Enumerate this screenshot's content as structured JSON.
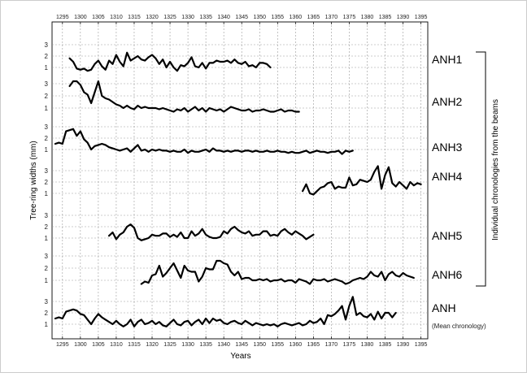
{
  "chart_data": {
    "type": "line",
    "xlabel": "Years",
    "ylabel": "Tree-ring widths (mm)",
    "right_label": "Individual chronologies from the beams",
    "xlim": [
      1293,
      1396
    ],
    "xticks": [
      1295,
      1300,
      1305,
      1310,
      1315,
      1320,
      1325,
      1330,
      1335,
      1340,
      1345,
      1350,
      1355,
      1360,
      1365,
      1370,
      1375,
      1380,
      1385,
      1390,
      1395
    ],
    "y_ticks": [
      1,
      2,
      3
    ],
    "grid": true,
    "series": [
      {
        "name": "ANH1",
        "sub": "",
        "start": 1297,
        "values": [
          1.8,
          1.5,
          0.9,
          0.8,
          0.9,
          0.7,
          0.8,
          1.3,
          1.6,
          1.1,
          0.8,
          1.6,
          1.3,
          2.1,
          1.5,
          1.1,
          2.3,
          1.6,
          1.8,
          2.0,
          1.7,
          1.6,
          1.9,
          2.1,
          1.8,
          1.3,
          1.7,
          1.0,
          1.5,
          1.0,
          0.7,
          1.2,
          1.1,
          1.4,
          1.9,
          1.1,
          1.0,
          1.4,
          0.9,
          1.4,
          1.4,
          1.6,
          1.5,
          1.5,
          1.6,
          1.4,
          1.7,
          1.4,
          1.3,
          1.5,
          1.1,
          1.2,
          1.0,
          1.4,
          1.4,
          1.3,
          1.0
        ]
      },
      {
        "name": "ANH2",
        "sub": "",
        "start": 1297,
        "values": [
          2.8,
          3.2,
          3.2,
          2.9,
          2.3,
          2.1,
          1.4,
          2.3,
          3.2,
          2.0,
          1.8,
          1.7,
          1.5,
          1.3,
          1.2,
          1.0,
          1.2,
          1.0,
          0.9,
          1.2,
          1.0,
          1.1,
          1.0,
          1.0,
          1.0,
          0.9,
          1.0,
          0.9,
          0.8,
          0.7,
          0.9,
          0.8,
          1.0,
          0.7,
          0.9,
          1.1,
          0.8,
          1.0,
          0.7,
          1.0,
          0.9,
          0.8,
          0.9,
          0.7,
          0.9,
          1.1,
          1.0,
          0.9,
          0.8,
          0.8,
          0.9,
          0.7,
          0.8,
          0.8,
          0.9,
          0.8,
          0.7,
          0.7,
          0.8,
          0.9,
          0.7,
          0.8,
          0.8,
          0.7,
          0.7
        ]
      },
      {
        "name": "ANH3",
        "sub": "",
        "start": 1293,
        "values": [
          1.5,
          1.6,
          1.5,
          2.6,
          2.7,
          2.8,
          2.2,
          2.6,
          1.9,
          1.6,
          1.0,
          1.3,
          1.4,
          1.5,
          1.4,
          1.2,
          1.1,
          1.0,
          0.9,
          1.0,
          1.1,
          0.8,
          1.1,
          1.4,
          0.9,
          1.0,
          0.8,
          1.0,
          0.9,
          1.0,
          0.9,
          0.9,
          0.8,
          0.9,
          0.8,
          0.8,
          1.0,
          0.7,
          0.9,
          0.8,
          0.8,
          0.9,
          1.0,
          0.8,
          1.1,
          0.9,
          0.9,
          0.8,
          0.9,
          0.8,
          0.9,
          0.9,
          0.8,
          0.9,
          0.9,
          0.8,
          0.9,
          0.8,
          0.8,
          0.9,
          0.8,
          0.8,
          0.9,
          0.8,
          0.8,
          0.7,
          0.8,
          0.7,
          0.7,
          0.8,
          0.9,
          0.7,
          0.8,
          0.9,
          0.8,
          0.8,
          0.7,
          0.8,
          0.8,
          0.9,
          0.6,
          0.9,
          0.8,
          0.9
        ]
      },
      {
        "name": "ANH4",
        "sub": "",
        "start": 1362,
        "values": [
          1.2,
          1.8,
          1.0,
          0.9,
          1.2,
          1.5,
          1.6,
          1.9,
          2.0,
          1.4,
          1.6,
          1.5,
          1.5,
          2.4,
          1.7,
          1.8,
          2.2,
          2.1,
          2.0,
          2.2,
          2.9,
          3.4,
          1.4,
          2.6,
          3.3,
          1.9,
          1.6,
          2.0,
          1.7,
          1.4,
          2.0,
          1.7,
          1.9,
          1.8
        ]
      },
      {
        "name": "ANH5",
        "sub": "",
        "start": 1308,
        "values": [
          1.2,
          1.5,
          0.9,
          1.3,
          1.5,
          2.0,
          2.2,
          1.9,
          1.0,
          0.8,
          0.9,
          1.0,
          1.3,
          1.2,
          1.2,
          1.4,
          1.4,
          1.1,
          1.3,
          1.1,
          1.5,
          1.0,
          1.0,
          1.6,
          1.2,
          1.4,
          1.8,
          1.3,
          1.1,
          1.0,
          1.0,
          1.1,
          1.6,
          1.4,
          1.8,
          2.0,
          1.7,
          1.5,
          1.4,
          1.6,
          1.2,
          1.3,
          1.3,
          1.6,
          1.6,
          1.2,
          1.3,
          1.2,
          1.6,
          1.8,
          1.5,
          1.3,
          1.6,
          1.4,
          1.2,
          0.9,
          1.1,
          1.3
        ]
      },
      {
        "name": "ANH6",
        "sub": "",
        "start": 1317,
        "values": [
          0.7,
          0.9,
          0.8,
          1.4,
          1.5,
          2.2,
          1.3,
          1.6,
          2.0,
          2.4,
          1.8,
          1.2,
          2.2,
          1.8,
          1.7,
          1.7,
          0.9,
          1.3,
          2.0,
          1.9,
          1.9,
          2.6,
          2.6,
          2.4,
          2.3,
          1.7,
          1.4,
          1.7,
          1.1,
          1.2,
          1.2,
          1.0,
          1.0,
          1.1,
          1.0,
          1.1,
          0.9,
          1.0,
          1.0,
          1.1,
          0.9,
          1.0,
          1.0,
          0.8,
          1.1,
          1.0,
          0.9,
          0.7,
          1.1,
          1.0,
          1.0,
          1.1,
          0.9,
          1.0,
          1.1,
          1.0,
          0.9,
          0.7,
          0.8,
          1.0,
          1.1,
          1.2,
          1.1,
          1.3,
          1.7,
          1.4,
          1.3,
          1.7,
          1.0,
          1.5,
          1.7,
          1.4,
          1.3,
          1.6,
          1.4,
          1.3,
          1.2
        ]
      },
      {
        "name": "ANH",
        "sub": "(Mean chronology)",
        "start": 1293,
        "values": [
          1.5,
          1.6,
          1.5,
          2.1,
          2.2,
          2.3,
          2.2,
          1.9,
          1.8,
          1.4,
          1.0,
          1.5,
          1.9,
          1.6,
          1.4,
          1.2,
          1.0,
          1.3,
          1.0,
          0.8,
          1.0,
          1.4,
          0.8,
          1.2,
          1.4,
          1.0,
          1.1,
          1.3,
          1.0,
          1.2,
          0.9,
          0.8,
          1.1,
          1.4,
          1.0,
          0.9,
          1.2,
          1.3,
          0.9,
          1.2,
          1.4,
          1.0,
          1.5,
          1.1,
          1.5,
          1.3,
          1.4,
          1.1,
          1.0,
          1.2,
          1.3,
          1.1,
          1.0,
          1.3,
          1.1,
          0.9,
          1.1,
          1.0,
          0.9,
          1.0,
          0.9,
          1.0,
          0.8,
          1.0,
          1.1,
          1.0,
          0.9,
          1.0,
          1.1,
          0.9,
          1.0,
          1.3,
          1.1,
          1.2,
          1.5,
          1.0,
          1.8,
          1.7,
          1.9,
          2.2,
          2.6,
          1.4,
          2.6,
          3.4,
          1.8,
          2.0,
          1.7,
          1.6,
          1.9,
          1.4,
          2.1,
          1.5,
          2.0,
          2.0,
          1.6,
          2.0
        ]
      }
    ]
  }
}
